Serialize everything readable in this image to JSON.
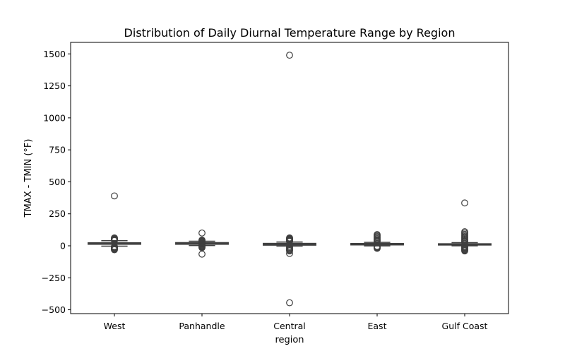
{
  "chart_data": {
    "type": "box",
    "title": "Distribution of Daily Diurnal Temperature Range by Region",
    "xlabel": "region",
    "ylabel": "TMAX - TMIN (°F)",
    "categories": [
      "West",
      "Panhandle",
      "Central",
      "East",
      "Gulf Coast"
    ],
    "ylim": [
      -530,
      1590
    ],
    "y_ticks": [
      -500,
      -250,
      0,
      250,
      500,
      750,
      1000,
      1250,
      1500
    ],
    "y_tick_labels": [
      "−500",
      "−250",
      "0",
      "250",
      "500",
      "750",
      "1000",
      "1250",
      "1500"
    ],
    "grid": false,
    "colors": {
      "box_fill": "#4c72b0",
      "box_edge": "#3f3f3f",
      "outlier_edge": "#3f3f3f"
    },
    "boxes": [
      {
        "category": "West",
        "q1": 12,
        "median": 18,
        "q3": 24,
        "whisker_low": -3,
        "whisker_high": 40,
        "outliers": [
          390,
          62,
          58,
          54,
          50,
          46,
          43,
          41,
          -5,
          -9,
          -13,
          -17,
          -21,
          -25,
          -28,
          -31
        ]
      },
      {
        "category": "Panhandle",
        "q1": 12,
        "median": 18,
        "q3": 25,
        "whisker_low": 2,
        "whisker_high": 36,
        "outliers": [
          100,
          45,
          40,
          35,
          30,
          25,
          20,
          15,
          10,
          5,
          0,
          -5,
          -10,
          -15,
          -65
        ]
      },
      {
        "category": "Central",
        "q1": 5,
        "median": 12,
        "q3": 19,
        "whisker_low": -2,
        "whisker_high": 30,
        "outliers": [
          1490,
          62,
          58,
          54,
          50,
          46,
          42,
          38,
          34,
          -8,
          -15,
          -22,
          -28,
          -34,
          -40,
          -60,
          -445
        ]
      },
      {
        "category": "East",
        "q1": 7,
        "median": 12,
        "q3": 18,
        "whisker_low": -1,
        "whisker_high": 27,
        "outliers": [
          88,
          80,
          72,
          64,
          56,
          48,
          40,
          34,
          -4,
          -8,
          -12,
          -16,
          -20
        ]
      },
      {
        "category": "Gulf Coast",
        "q1": 6,
        "median": 11,
        "q3": 16,
        "whisker_low": 0,
        "whisker_high": 25,
        "outliers": [
          335,
          110,
          100,
          90,
          80,
          72,
          64,
          56,
          48,
          40,
          34,
          30,
          -5,
          -10,
          -15,
          -20,
          -25,
          -30,
          -35,
          -40
        ]
      }
    ]
  }
}
